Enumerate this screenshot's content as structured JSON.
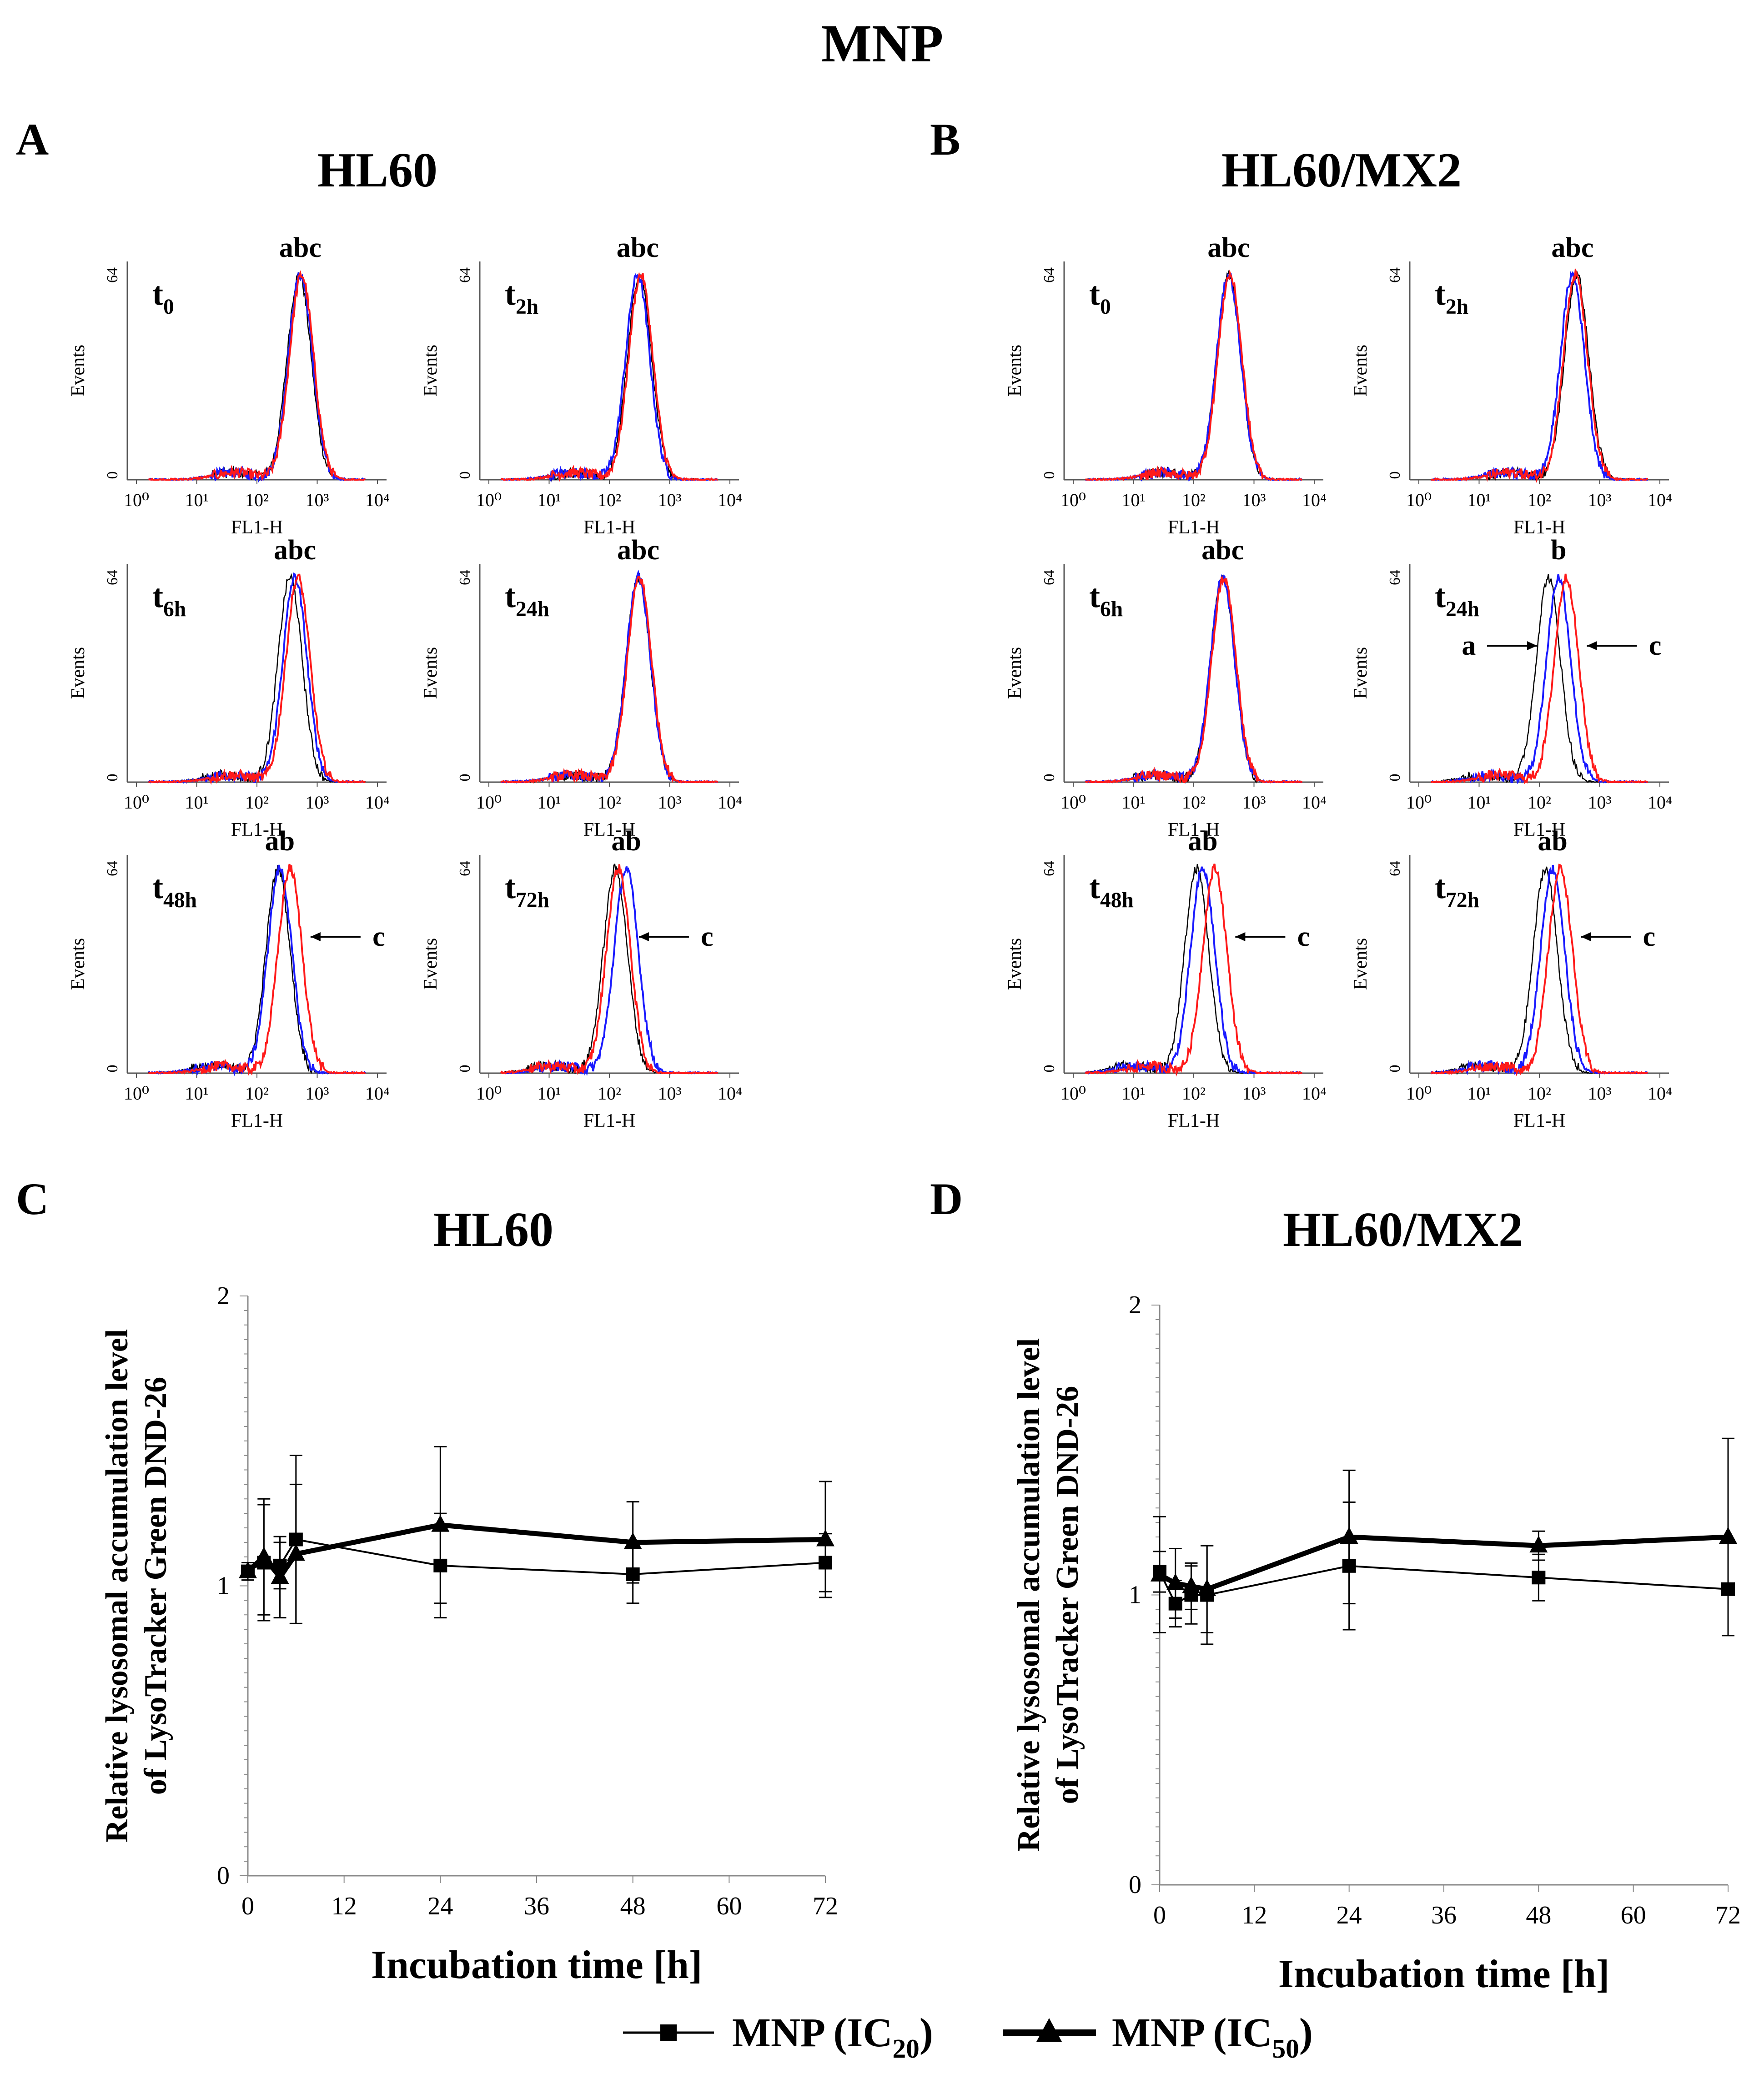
{
  "figure_title": "MNP",
  "panels": {
    "A": {
      "letter": "A",
      "title": "HL60"
    },
    "B": {
      "letter": "B",
      "title": "HL60/MX2"
    },
    "C": {
      "letter": "C",
      "title": "HL60"
    },
    "D": {
      "letter": "D",
      "title": "HL60/MX2"
    }
  },
  "legend": [
    {
      "name": "MNP (IC",
      "sub": "20",
      "close": ")",
      "marker": "square",
      "weight": "thin"
    },
    {
      "name": "MNP (IC",
      "sub": "50",
      "close": ")",
      "marker": "triangle",
      "weight": "thick"
    }
  ],
  "colors": {
    "control": "#000000",
    "ic20": "#1a1aff",
    "ic50": "#ff1a1a"
  },
  "chart_data": [
    {
      "panel": "A",
      "type": "histogram-grid",
      "cell_line": "HL60",
      "xlabel": "FL1-H",
      "ylabel": "Events",
      "y_tick_labels": [
        "0",
        "64"
      ],
      "x_tick_labels": [
        "10⁰",
        "10¹",
        "10²",
        "10³",
        "10⁴"
      ],
      "x_log_range": [
        0,
        4
      ],
      "subplots": [
        {
          "time": "t",
          "sub": "0",
          "annot": "abc",
          "arrows": [],
          "peaks_log": {
            "a": 2.7,
            "b": 2.72,
            "c": 2.74
          }
        },
        {
          "time": "t",
          "sub": "2h",
          "annot": "abc",
          "arrows": [],
          "peaks_log": {
            "a": 2.5,
            "b": 2.47,
            "c": 2.52
          }
        },
        {
          "time": "t",
          "sub": "6h",
          "annot": "abc",
          "arrows": [],
          "peaks_log": {
            "a": 2.55,
            "b": 2.63,
            "c": 2.68
          }
        },
        {
          "time": "t",
          "sub": "24h",
          "annot": "abc",
          "arrows": [],
          "peaks_log": {
            "a": 2.48,
            "b": 2.48,
            "c": 2.5
          }
        },
        {
          "time": "t",
          "sub": "48h",
          "annot": "ab",
          "arrows": [
            {
              "label": "c",
              "side": "right"
            }
          ],
          "peaks_log": {
            "a": 2.35,
            "b": 2.38,
            "c": 2.55
          }
        },
        {
          "time": "t",
          "sub": "72h",
          "annot": "ab",
          "arrows": [
            {
              "label": "c",
              "side": "right"
            }
          ],
          "peaks_log": {
            "a": 2.1,
            "b": 2.28,
            "c": 2.15
          }
        }
      ]
    },
    {
      "panel": "B",
      "type": "histogram-grid",
      "cell_line": "HL60/MX2",
      "xlabel": "FL1-H",
      "ylabel": "Events",
      "y_tick_labels": [
        "0",
        "64"
      ],
      "x_tick_labels": [
        "10⁰",
        "10¹",
        "10²",
        "10³",
        "10⁴"
      ],
      "x_log_range": [
        0,
        4
      ],
      "subplots": [
        {
          "time": "t",
          "sub": "0",
          "annot": "abc",
          "arrows": [],
          "peaks_log": {
            "a": 2.58,
            "b": 2.58,
            "c": 2.6
          }
        },
        {
          "time": "t",
          "sub": "2h",
          "annot": "abc",
          "arrows": [],
          "peaks_log": {
            "a": 2.62,
            "b": 2.55,
            "c": 2.6
          }
        },
        {
          "time": "t",
          "sub": "6h",
          "annot": "abc",
          "arrows": [],
          "peaks_log": {
            "a": 2.48,
            "b": 2.48,
            "c": 2.5
          }
        },
        {
          "time": "t",
          "sub": "24h",
          "annot": "b",
          "arrows": [
            {
              "label": "a",
              "side": "left"
            },
            {
              "label": "c",
              "side": "right"
            }
          ],
          "peaks_log": {
            "a": 2.15,
            "b": 2.32,
            "c": 2.45
          }
        },
        {
          "time": "t",
          "sub": "48h",
          "annot": "ab",
          "arrows": [
            {
              "label": "c",
              "side": "right"
            }
          ],
          "peaks_log": {
            "a": 2.05,
            "b": 2.15,
            "c": 2.35
          }
        },
        {
          "time": "t",
          "sub": "72h",
          "annot": "ab",
          "arrows": [
            {
              "label": "c",
              "side": "right"
            }
          ],
          "peaks_log": {
            "a": 2.1,
            "b": 2.22,
            "c": 2.35
          }
        }
      ]
    },
    {
      "panel": "C",
      "type": "line",
      "title": "HL60",
      "xlabel": "Incubation time [h]",
      "ylabel": "Relative lysosomal accumulation level",
      "ylabel2": "of LysoTracker Green DND-26",
      "xlim": [
        0,
        72
      ],
      "ylim": [
        0,
        2
      ],
      "x_ticks": [
        0,
        12,
        24,
        36,
        48,
        60,
        72
      ],
      "y_ticks": [
        0,
        1,
        2
      ],
      "series": [
        {
          "name": "MNP (IC20)",
          "marker": "square",
          "x": [
            0,
            2,
            4,
            6,
            24,
            48,
            72
          ],
          "y": [
            1.05,
            1.08,
            1.07,
            1.16,
            1.07,
            1.04,
            1.08
          ],
          "err": [
            0.03,
            0.2,
            0.08,
            0.29,
            0.18,
            0.1,
            0.1
          ]
        },
        {
          "name": "MNP (IC50)",
          "marker": "triangle",
          "x": [
            0,
            2,
            4,
            6,
            24,
            48,
            72
          ],
          "y": [
            1.05,
            1.1,
            1.03,
            1.11,
            1.21,
            1.15,
            1.16
          ],
          "err": [
            0.03,
            0.2,
            0.14,
            0.24,
            0.27,
            0.14,
            0.2
          ]
        }
      ]
    },
    {
      "panel": "D",
      "type": "line",
      "title": "HL60/MX2",
      "xlabel": "Incubation time [h]",
      "ylabel": "Relative lysosomal accumulation level",
      "ylabel2": "of LysoTracker Green DND-26",
      "xlim": [
        0,
        72
      ],
      "ylim": [
        0,
        2
      ],
      "x_ticks": [
        0,
        12,
        24,
        36,
        48,
        60,
        72
      ],
      "y_ticks": [
        0,
        1,
        2
      ],
      "series": [
        {
          "name": "MNP (IC20)",
          "marker": "square",
          "x": [
            0,
            2,
            4,
            6,
            24,
            48,
            72
          ],
          "y": [
            1.08,
            0.97,
            1.0,
            1.0,
            1.1,
            1.06,
            1.02
          ],
          "err": [
            0.07,
            0.08,
            0.1,
            0.17,
            0.22,
            0.08,
            0.16
          ]
        },
        {
          "name": "MNP (IC50)",
          "marker": "triangle",
          "x": [
            0,
            2,
            4,
            6,
            24,
            48,
            72
          ],
          "y": [
            1.07,
            1.04,
            1.03,
            1.02,
            1.2,
            1.17,
            1.2
          ],
          "err": [
            0.2,
            0.12,
            0.08,
            0.15,
            0.23,
            0.05,
            0.34
          ]
        }
      ]
    }
  ]
}
